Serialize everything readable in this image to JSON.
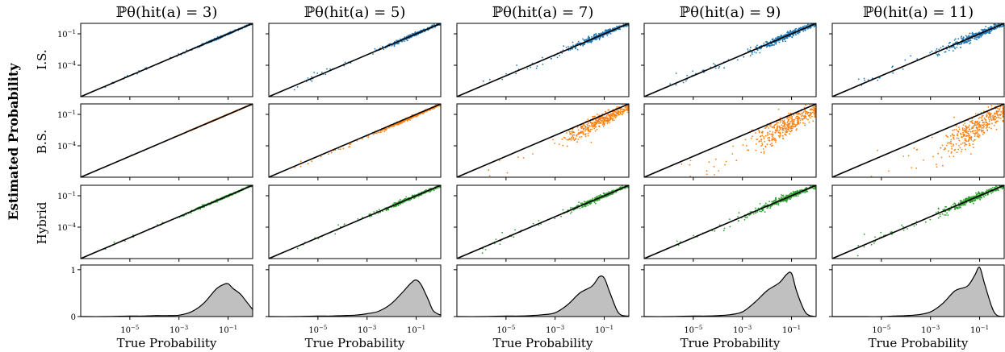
{
  "figure": {
    "ylabel": "Estimated Probability",
    "xlabel": "True Probability",
    "row_labels": [
      "I.S.",
      "B.S.",
      "Hybrid"
    ],
    "column_titles": [
      "ℙθ(hit(a) = 3)",
      "ℙθ(hit(a) = 5)",
      "ℙθ(hit(a) = 7)",
      "ℙθ(hit(a) = 9)",
      "ℙθ(hit(a) = 11)"
    ],
    "colors": {
      "I.S.": "#1f77b4",
      "B.S.": "#ff7f0e",
      "Hybrid": "#2ca02c",
      "density_fill": "#c0c0c0",
      "diagonal": "#000000"
    }
  },
  "chart_data": {
    "type": "scatter",
    "x_scale": "log",
    "y_scale": "log",
    "xlim": [
      1e-07,
      1
    ],
    "ylim": [
      1e-07,
      1
    ],
    "x_ticks": [
      "10^-5",
      "10^-3",
      "10^-1"
    ],
    "y_ticks": [
      "10^-1",
      "10^-4"
    ],
    "diagonal": "y = x",
    "density_row": {
      "type": "area",
      "ylim": [
        0,
        1.1
      ],
      "y_ticks": [
        "1",
        "0"
      ],
      "x_log10": [
        -7,
        -6,
        -5,
        -4.5,
        -4,
        -3.5,
        -3,
        -2.5,
        -2,
        -1.5,
        -1.2,
        -1,
        -0.8,
        -0.5,
        -0.3,
        0
      ],
      "curves": [
        [
          0,
          0,
          0.01,
          0.01,
          0.02,
          0.02,
          0.03,
          0.1,
          0.28,
          0.58,
          0.68,
          0.7,
          0.6,
          0.48,
          0.35,
          0.15
        ],
        [
          0,
          0,
          0.01,
          0.01,
          0.02,
          0.03,
          0.06,
          0.12,
          0.28,
          0.55,
          0.72,
          0.78,
          0.68,
          0.35,
          0.12,
          0.03
        ],
        [
          0,
          0,
          0.01,
          0.01,
          0.02,
          0.04,
          0.08,
          0.25,
          0.5,
          0.65,
          0.85,
          0.82,
          0.55,
          0.15,
          0.03,
          0.01
        ],
        [
          0,
          0,
          0.01,
          0.01,
          0.02,
          0.04,
          0.1,
          0.3,
          0.55,
          0.72,
          0.9,
          0.92,
          0.55,
          0.15,
          0.03,
          0.0
        ],
        [
          0,
          0,
          0.0,
          0.01,
          0.02,
          0.04,
          0.1,
          0.28,
          0.55,
          0.65,
          0.88,
          1.05,
          0.7,
          0.2,
          0.03,
          0.0
        ]
      ]
    },
    "series": [
      {
        "name": "I.S.",
        "points_per_panel": 400,
        "scatter_spread_log10": [
          0.03,
          0.06,
          0.09,
          0.11,
          0.13
        ],
        "bias_log10": [
          0,
          0,
          0,
          0,
          0
        ]
      },
      {
        "name": "B.S.",
        "points_per_panel": 400,
        "scatter_spread_log10": [
          0.01,
          0.05,
          0.22,
          0.35,
          0.45
        ],
        "bias_log10": [
          0,
          -0.08,
          -0.5,
          -0.9,
          -1.2
        ]
      },
      {
        "name": "Hybrid",
        "points_per_panel": 400,
        "scatter_spread_log10": [
          0.03,
          0.06,
          0.08,
          0.1,
          0.12
        ],
        "bias_log10": [
          0,
          0,
          0,
          0,
          0
        ]
      }
    ]
  }
}
